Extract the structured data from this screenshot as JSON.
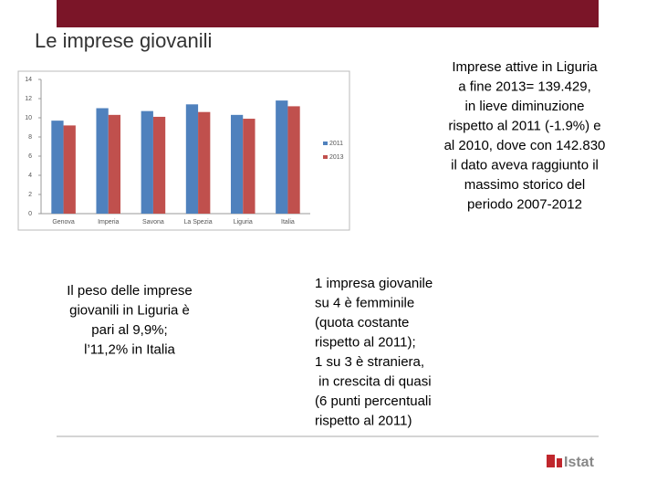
{
  "header": {
    "title": "Le imprese giovanili"
  },
  "chart_data": {
    "type": "bar",
    "categories": [
      "Genova",
      "Imperia",
      "Savona",
      "La Spezia",
      "Liguria",
      "Italia"
    ],
    "series": [
      {
        "name": "2011",
        "color": "#4f81bd",
        "values": [
          9.7,
          11.0,
          10.7,
          11.4,
          10.3,
          11.8
        ]
      },
      {
        "name": "2013",
        "color": "#c0504d",
        "values": [
          9.2,
          10.3,
          10.1,
          10.6,
          9.9,
          11.2
        ]
      }
    ],
    "ylim": [
      0,
      14
    ],
    "yticks": [
      0,
      2,
      4,
      6,
      8,
      10,
      12,
      14
    ],
    "grid": false,
    "legend": "right"
  },
  "texts": {
    "summary": [
      "Imprese attive in Liguria",
      "a fine 2013= 139.429,",
      "in lieve diminuzione",
      "rispetto al 2011 (-1.9%) e",
      "al 2010, dove con 142.830",
      "il dato aveva raggiunto il",
      "massimo storico del",
      "periodo 2007-2012"
    ],
    "weight": [
      "Il peso delle imprese",
      "giovanili in Liguria è",
      "pari al 9,9%;",
      "l’11,2% in Italia"
    ],
    "share": [
      "1 impresa giovanile",
      "su 4 è femminile",
      "(quota costante",
      "rispetto al 2011);",
      "1 su 3 è straniera,",
      " in crescita di quasi",
      "(6 punti percentuali",
      "rispetto al 2011)"
    ]
  },
  "logo": {
    "text": "Istat"
  }
}
